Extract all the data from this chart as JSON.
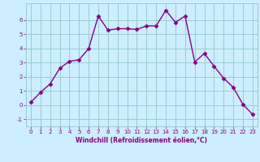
{
  "x": [
    0,
    1,
    2,
    3,
    4,
    5,
    6,
    7,
    8,
    9,
    10,
    11,
    12,
    13,
    14,
    15,
    16,
    17,
    18,
    19,
    20,
    21,
    22,
    23
  ],
  "y": [
    0.2,
    0.9,
    1.5,
    2.6,
    3.1,
    3.2,
    4.0,
    6.3,
    5.3,
    5.4,
    5.4,
    5.35,
    5.6,
    5.6,
    6.7,
    5.85,
    6.3,
    3.05,
    3.65,
    2.75,
    1.9,
    1.25,
    0.05,
    -0.65
  ],
  "line_color": "#880088",
  "marker": "D",
  "marker_size": 2.5,
  "bg_color": "#cceeff",
  "grid_color": "#99cccc",
  "xlabel": "Windchill (Refroidissement éolien,°C)",
  "xlim": [
    -0.5,
    23.5
  ],
  "ylim": [
    -1.5,
    7.2
  ],
  "yticks": [
    -1,
    0,
    1,
    2,
    3,
    4,
    5,
    6
  ],
  "xticks": [
    0,
    1,
    2,
    3,
    4,
    5,
    6,
    7,
    8,
    9,
    10,
    11,
    12,
    13,
    14,
    15,
    16,
    17,
    18,
    19,
    20,
    21,
    22,
    23
  ],
  "font_color": "#880088",
  "tick_fontsize": 5.0,
  "xlabel_fontsize": 5.5,
  "linewidth": 1.0
}
